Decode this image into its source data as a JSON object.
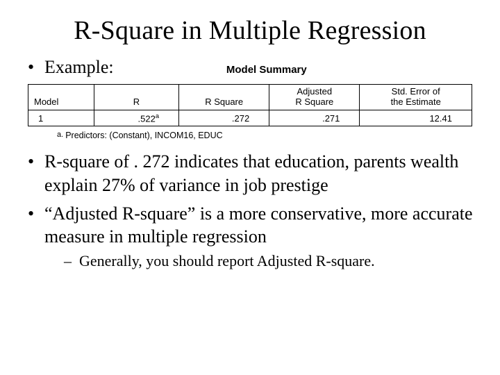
{
  "title": "R-Square in Multiple Regression",
  "bullets": {
    "example_label": "Example:",
    "rsq": "R-square of . 272 indicates that education, parents wealth explain 27% of variance in job prestige",
    "adj": "“Adjusted R-square” is a more conservative, more accurate measure in multiple regression",
    "sub": "Generally, you should report Adjusted R-square."
  },
  "model_summary": {
    "heading": "Model Summary",
    "columns": [
      "Model",
      "R",
      "R Square",
      "Adjusted\nR Square",
      "Std. Error of\nthe Estimate"
    ],
    "row": {
      "model": "1",
      "r": ".522",
      "r_sup": "a",
      "r_square": ".272",
      "adj_r_square": ".271",
      "std_err": "12.41"
    },
    "footnote_mark": "a.",
    "footnote_text": "Predictors: (Constant), INCOM16, EDUC"
  },
  "colors": {
    "text": "#000000",
    "background": "#ffffff",
    "border": "#000000"
  }
}
